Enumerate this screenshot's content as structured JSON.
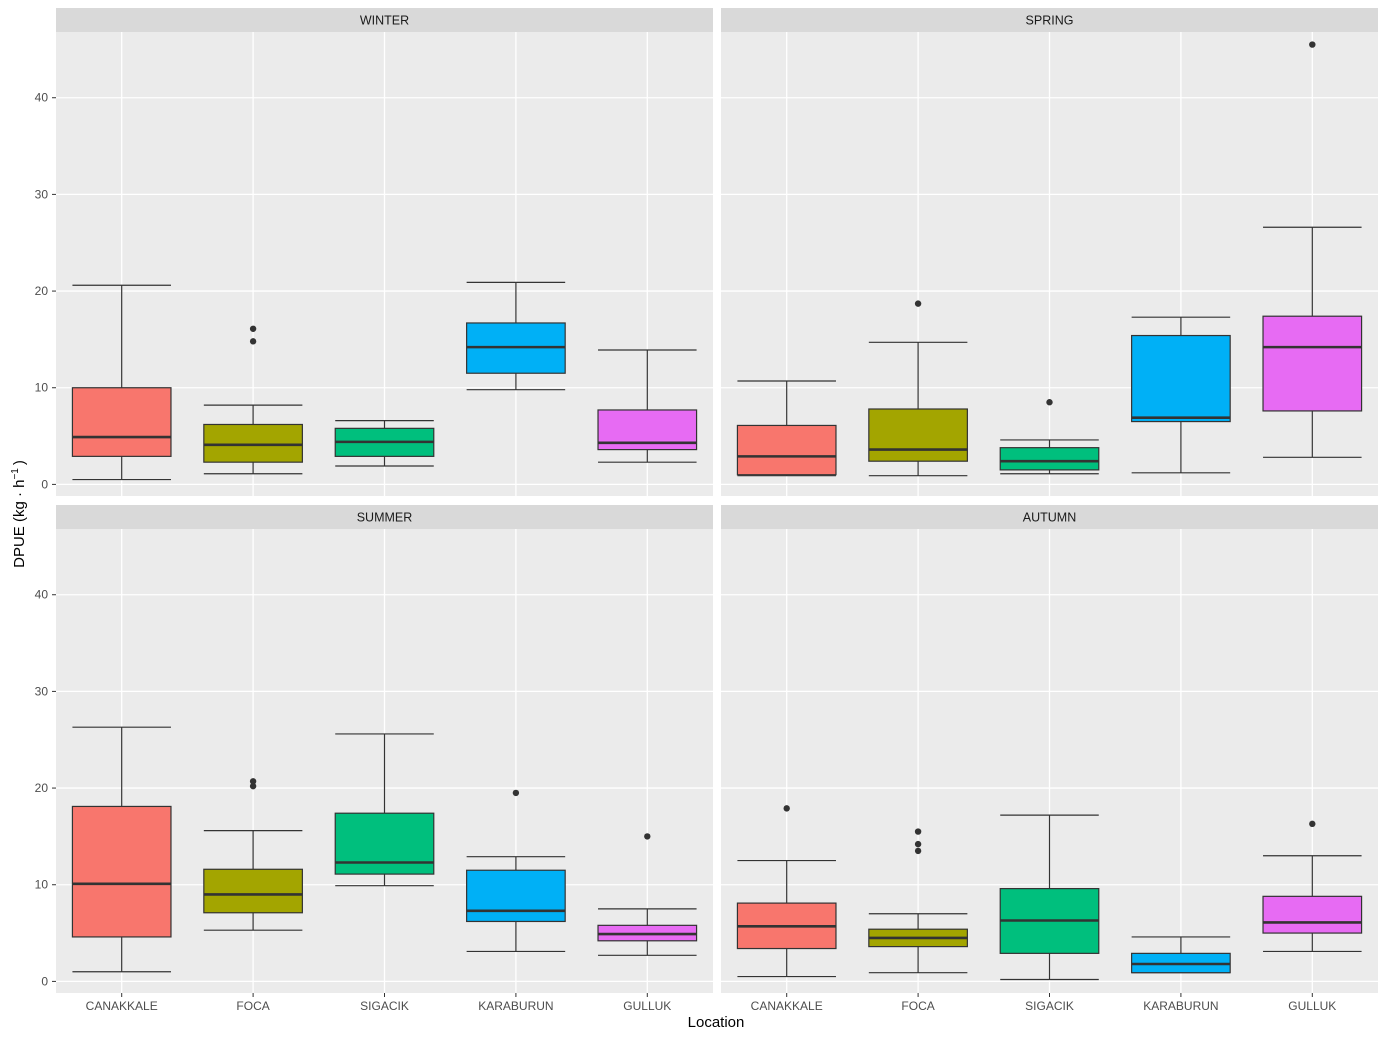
{
  "chart_data": {
    "type": "boxplot",
    "xlabel": "Location",
    "ylabel": "DPUE (kg · h",
    "ylabel_superscript": "−1",
    "ylabel_suffix": ")",
    "ylim": [
      -1.2,
      46.8
    ],
    "yticks": [
      0,
      10,
      20,
      30,
      40
    ],
    "grid": true,
    "categories": [
      "CANAKKALE",
      "FOCA",
      "SIGACIK",
      "KARABURUN",
      "GULLUK"
    ],
    "colors": {
      "CANAKKALE": "#F8766D",
      "FOCA": "#A3A500",
      "SIGACIK": "#00BF7D",
      "KARABURUN": "#00B0F6",
      "GULLUK": "#E76BF3"
    },
    "panels": [
      {
        "season": "WINTER",
        "boxes": [
          {
            "location": "CANAKKALE",
            "min": 0.5,
            "q1": 2.9,
            "median": 4.9,
            "q3": 10.0,
            "max": 20.6,
            "outliers": []
          },
          {
            "location": "FOCA",
            "min": 1.1,
            "q1": 2.3,
            "median": 4.1,
            "q3": 6.2,
            "max": 8.2,
            "outliers": [
              14.8,
              16.1
            ]
          },
          {
            "location": "SIGACIK",
            "min": 1.9,
            "q1": 2.9,
            "median": 4.4,
            "q3": 5.8,
            "max": 6.6,
            "outliers": []
          },
          {
            "location": "KARABURUN",
            "min": 9.8,
            "q1": 11.5,
            "median": 14.2,
            "q3": 16.7,
            "max": 20.9,
            "outliers": []
          },
          {
            "location": "GULLUK",
            "min": 2.3,
            "q1": 3.6,
            "median": 4.3,
            "q3": 7.7,
            "max": 13.9,
            "outliers": []
          }
        ]
      },
      {
        "season": "SPRING",
        "boxes": [
          {
            "location": "CANAKKALE",
            "min": 0.9,
            "q1": 1.0,
            "median": 2.9,
            "q3": 6.1,
            "max": 10.7,
            "outliers": []
          },
          {
            "location": "FOCA",
            "min": 0.9,
            "q1": 2.4,
            "median": 3.6,
            "q3": 7.8,
            "max": 14.7,
            "outliers": [
              18.7
            ]
          },
          {
            "location": "SIGACIK",
            "min": 1.1,
            "q1": 1.5,
            "median": 2.4,
            "q3": 3.8,
            "max": 4.6,
            "outliers": [
              8.5
            ]
          },
          {
            "location": "KARABURUN",
            "min": 1.2,
            "q1": 6.5,
            "median": 6.9,
            "q3": 15.4,
            "max": 17.3,
            "outliers": []
          },
          {
            "location": "GULLUK",
            "min": 2.8,
            "q1": 7.6,
            "median": 14.2,
            "q3": 17.4,
            "max": 26.6,
            "outliers": [
              45.5
            ]
          }
        ]
      },
      {
        "season": "SUMMER",
        "boxes": [
          {
            "location": "CANAKKALE",
            "min": 1.0,
            "q1": 4.6,
            "median": 10.1,
            "q3": 18.1,
            "max": 26.3,
            "outliers": []
          },
          {
            "location": "FOCA",
            "min": 5.3,
            "q1": 7.1,
            "median": 9.0,
            "q3": 11.6,
            "max": 15.6,
            "outliers": [
              20.2,
              20.7
            ]
          },
          {
            "location": "SIGACIK",
            "min": 9.9,
            "q1": 11.1,
            "median": 12.3,
            "q3": 17.4,
            "max": 25.6,
            "outliers": []
          },
          {
            "location": "KARABURUN",
            "min": 3.1,
            "q1": 6.2,
            "median": 7.3,
            "q3": 11.5,
            "max": 12.9,
            "outliers": [
              19.5
            ]
          },
          {
            "location": "GULLUK",
            "min": 2.7,
            "q1": 4.2,
            "median": 4.9,
            "q3": 5.8,
            "max": 7.5,
            "outliers": [
              15.0
            ]
          }
        ]
      },
      {
        "season": "AUTUMN",
        "boxes": [
          {
            "location": "CANAKKALE",
            "min": 0.5,
            "q1": 3.4,
            "median": 5.7,
            "q3": 8.1,
            "max": 12.5,
            "outliers": [
              17.9
            ]
          },
          {
            "location": "FOCA",
            "min": 0.9,
            "q1": 3.6,
            "median": 4.5,
            "q3": 5.4,
            "max": 7.0,
            "outliers": [
              13.5,
              14.2,
              15.5
            ]
          },
          {
            "location": "SIGACIK",
            "min": 0.2,
            "q1": 2.9,
            "median": 6.3,
            "q3": 9.6,
            "max": 17.2,
            "outliers": []
          },
          {
            "location": "KARABURUN",
            "min": 0.9,
            "q1": 0.9,
            "median": 1.8,
            "q3": 2.9,
            "max": 4.6,
            "outliers": []
          },
          {
            "location": "GULLUK",
            "min": 3.1,
            "q1": 5.0,
            "median": 6.1,
            "q3": 8.8,
            "max": 13.0,
            "outliers": [
              16.3
            ]
          }
        ]
      }
    ]
  }
}
